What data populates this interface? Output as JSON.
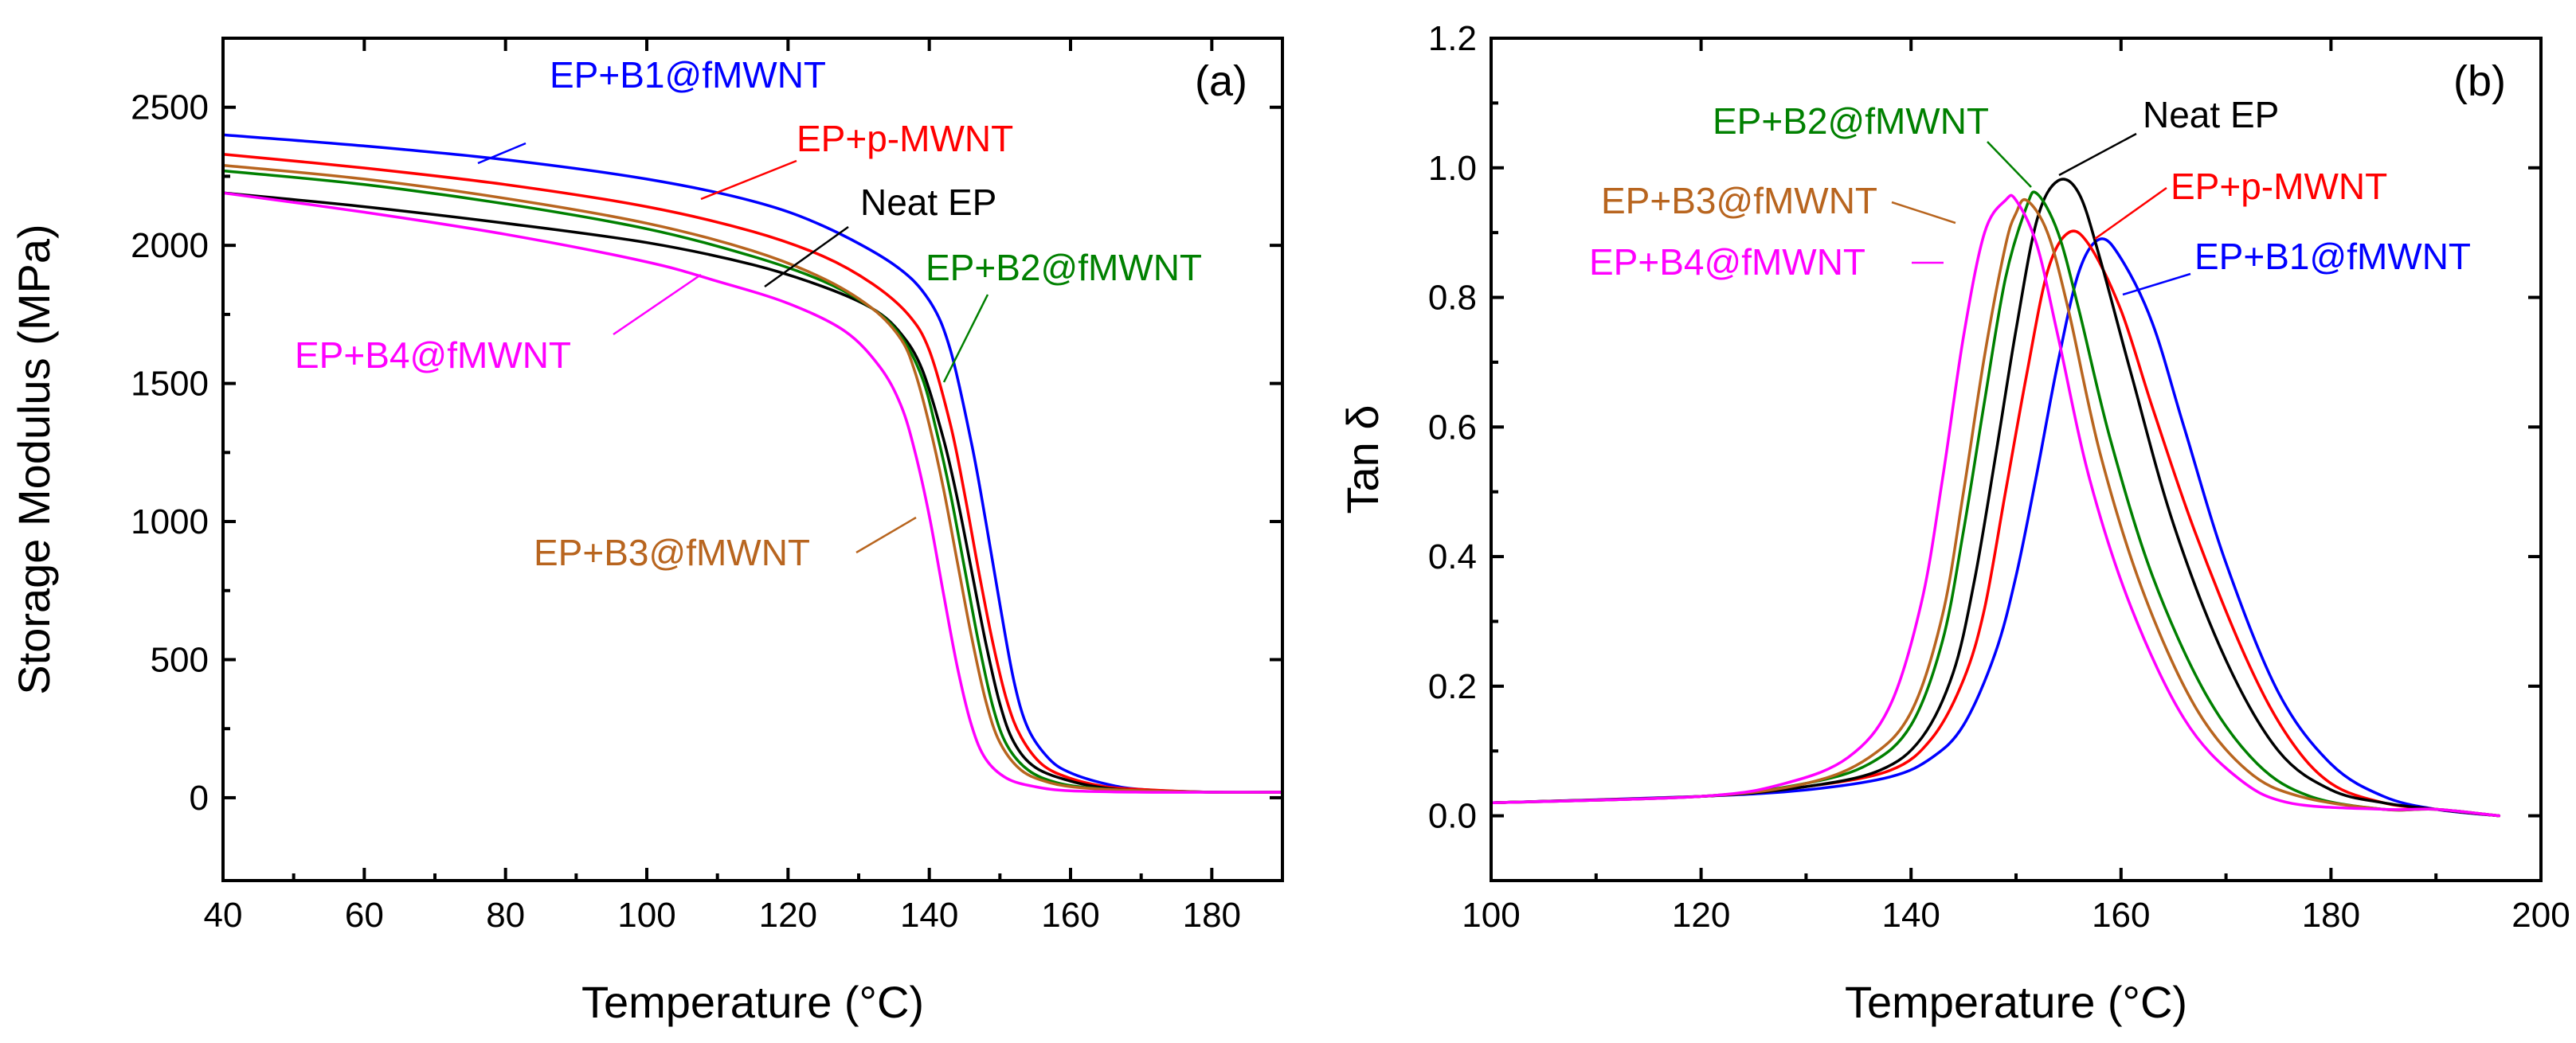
{
  "chart_data": [
    {
      "panel": "(a)",
      "type": "line",
      "title": "",
      "xlabel": "Temperature (°C)",
      "ylabel": "Storage Modulus (MPa)",
      "xlim": [
        40,
        190
      ],
      "ylim": [
        -300,
        2750
      ],
      "xticks": [
        40,
        60,
        80,
        100,
        120,
        140,
        160,
        180
      ],
      "yticks": [
        0,
        500,
        1000,
        1500,
        2000,
        2500
      ],
      "series": [
        {
          "name": "EP+B1@fMWNT",
          "color": "#0000ff",
          "x": [
            40,
            60,
            80,
            100,
            115,
            125,
            135,
            140,
            143,
            146,
            148,
            150,
            152,
            154,
            157,
            160,
            165,
            170,
            180,
            190
          ],
          "y": [
            2400,
            2360,
            2310,
            2240,
            2160,
            2070,
            1930,
            1800,
            1620,
            1280,
            1000,
            700,
            420,
            250,
            140,
            90,
            50,
            30,
            20,
            20
          ]
        },
        {
          "name": "EP+p-MWNT",
          "color": "#ff0000",
          "x": [
            40,
            60,
            80,
            100,
            115,
            125,
            132,
            137,
            140,
            143,
            145,
            147,
            149,
            151,
            153,
            156,
            160,
            165,
            170,
            180,
            190
          ],
          "y": [
            2330,
            2280,
            2220,
            2140,
            2050,
            1960,
            1860,
            1750,
            1620,
            1350,
            1100,
            820,
            560,
            350,
            220,
            120,
            70,
            40,
            30,
            20,
            20
          ]
        },
        {
          "name": "Neat EP",
          "color": "#000000",
          "x": [
            40,
            60,
            80,
            100,
            115,
            125,
            132,
            136,
            139,
            142,
            144,
            146,
            148,
            150,
            152,
            155,
            160,
            165,
            170,
            180,
            190
          ],
          "y": [
            2190,
            2140,
            2080,
            2010,
            1930,
            1850,
            1770,
            1680,
            1550,
            1300,
            1080,
            820,
            560,
            340,
            200,
            110,
            60,
            35,
            25,
            20,
            20
          ]
        },
        {
          "name": "EP+B2@fMWNT",
          "color": "#008000",
          "x": [
            40,
            60,
            80,
            100,
            115,
            125,
            132,
            136,
            139,
            141,
            143,
            145,
            147,
            149,
            151,
            154,
            158,
            163,
            170,
            180,
            190
          ],
          "y": [
            2270,
            2220,
            2150,
            2060,
            1960,
            1870,
            1770,
            1670,
            1520,
            1330,
            1100,
            830,
            560,
            330,
            190,
            100,
            55,
            35,
            25,
            20,
            20
          ]
        },
        {
          "name": "EP+B3@fMWNT",
          "color": "#b8651f",
          "x": [
            40,
            60,
            80,
            100,
            115,
            125,
            132,
            136,
            138,
            140,
            142,
            144,
            146,
            148,
            150,
            153,
            157,
            162,
            170,
            180,
            190
          ],
          "y": [
            2290,
            2240,
            2170,
            2080,
            1980,
            1880,
            1770,
            1660,
            1540,
            1350,
            1120,
            850,
            580,
            350,
            200,
            100,
            55,
            35,
            25,
            20,
            20
          ]
        },
        {
          "name": "EP+B4@fMWNT",
          "color": "#ff00ff",
          "x": [
            40,
            60,
            80,
            100,
            110,
            120,
            128,
            133,
            136,
            138,
            140,
            142,
            144,
            146,
            148,
            151,
            155,
            160,
            170,
            180,
            190
          ],
          "y": [
            2190,
            2120,
            2040,
            1940,
            1870,
            1790,
            1690,
            1560,
            1420,
            1250,
            1020,
            740,
            470,
            260,
            140,
            70,
            40,
            25,
            20,
            20,
            20
          ]
        }
      ],
      "labels": [
        {
          "text": "EP+B1@fMWNT",
          "series": "EP+B1@fMWNT"
        },
        {
          "text": "EP+p-MWNT",
          "series": "EP+p-MWNT"
        },
        {
          "text": "Neat EP",
          "series": "Neat EP"
        },
        {
          "text": "EP+B2@fMWNT",
          "series": "EP+B2@fMWNT"
        },
        {
          "text": "EP+B4@fMWNT",
          "series": "EP+B4@fMWNT"
        },
        {
          "text": "EP+B3@fMWNT",
          "series": "EP+B3@fMWNT"
        }
      ]
    },
    {
      "panel": "(b)",
      "type": "line",
      "title": "",
      "xlabel": "Temperature (°C)",
      "ylabel": "Tan δ",
      "xlim": [
        100,
        200
      ],
      "ylim": [
        -0.1,
        1.2
      ],
      "xticks": [
        100,
        120,
        140,
        160,
        180,
        200
      ],
      "yticks": [
        0.0,
        0.2,
        0.4,
        0.6,
        0.8,
        1.0,
        1.2
      ],
      "ytick_labels": [
        "0.0",
        "0.2",
        "0.4",
        "0.6",
        "0.8",
        "1.0",
        "1.2"
      ],
      "series": [
        {
          "name": "EP+B1@fMWNT",
          "color": "#0000ff",
          "x": [
            100,
            120,
            130,
            138,
            142,
            145,
            148,
            150,
            152,
            154,
            156,
            158,
            160,
            163,
            166,
            170,
            175,
            180,
            185,
            190,
            196
          ],
          "y": [
            0.02,
            0.03,
            0.04,
            0.06,
            0.09,
            0.14,
            0.25,
            0.37,
            0.53,
            0.7,
            0.84,
            0.89,
            0.86,
            0.76,
            0.6,
            0.39,
            0.19,
            0.08,
            0.03,
            0.01,
            0.0
          ]
        },
        {
          "name": "EP+p-MWNT",
          "color": "#ff0000",
          "x": [
            100,
            120,
            130,
            138,
            142,
            145,
            147,
            149,
            151,
            153,
            155,
            157,
            160,
            163,
            167,
            172,
            176,
            180,
            185,
            190,
            196
          ],
          "y": [
            0.02,
            0.03,
            0.045,
            0.07,
            0.12,
            0.21,
            0.32,
            0.5,
            0.68,
            0.84,
            0.9,
            0.88,
            0.78,
            0.63,
            0.44,
            0.24,
            0.12,
            0.05,
            0.02,
            0.01,
            0.0
          ]
        },
        {
          "name": "Neat EP",
          "color": "#000000",
          "x": [
            100,
            120,
            130,
            137,
            141,
            144,
            146,
            148,
            150,
            152,
            154,
            156,
            158,
            161,
            165,
            170,
            175,
            180,
            185,
            190,
            196
          ],
          "y": [
            0.02,
            0.03,
            0.045,
            0.07,
            0.12,
            0.22,
            0.36,
            0.55,
            0.75,
            0.92,
            0.98,
            0.96,
            0.86,
            0.68,
            0.45,
            0.24,
            0.1,
            0.04,
            0.02,
            0.01,
            0.0
          ]
        },
        {
          "name": "EP+B2@fMWNT",
          "color": "#008000",
          "x": [
            100,
            120,
            130,
            136,
            140,
            143,
            145,
            147,
            149,
            151,
            152,
            154,
            156,
            159,
            163,
            168,
            173,
            178,
            185,
            190,
            196
          ],
          "y": [
            0.02,
            0.03,
            0.05,
            0.08,
            0.14,
            0.27,
            0.44,
            0.64,
            0.83,
            0.94,
            0.96,
            0.9,
            0.78,
            0.58,
            0.37,
            0.19,
            0.08,
            0.03,
            0.01,
            0.01,
            0.0
          ]
        },
        {
          "name": "EP+B3@fMWNT",
          "color": "#b8651f",
          "x": [
            100,
            120,
            130,
            136,
            140,
            143,
            145,
            147,
            149,
            150,
            151,
            153,
            155,
            158,
            162,
            167,
            172,
            177,
            185,
            190,
            196
          ],
          "y": [
            0.02,
            0.03,
            0.05,
            0.09,
            0.16,
            0.31,
            0.5,
            0.71,
            0.88,
            0.93,
            0.95,
            0.9,
            0.78,
            0.56,
            0.35,
            0.17,
            0.07,
            0.03,
            0.01,
            0.01,
            0.0
          ]
        },
        {
          "name": "EP+B4@fMWNT",
          "color": "#ff00ff",
          "x": [
            100,
            120,
            128,
            134,
            138,
            141,
            143,
            145,
            147,
            149,
            150,
            152,
            154,
            157,
            161,
            166,
            171,
            176,
            185,
            190,
            196
          ],
          "y": [
            0.02,
            0.03,
            0.05,
            0.09,
            0.17,
            0.33,
            0.52,
            0.74,
            0.9,
            0.95,
            0.95,
            0.88,
            0.74,
            0.52,
            0.32,
            0.15,
            0.06,
            0.02,
            0.01,
            0.01,
            0.0
          ]
        }
      ],
      "labels": [
        {
          "text": "EP+B2@fMWNT",
          "series": "EP+B2@fMWNT"
        },
        {
          "text": "Neat EP",
          "series": "Neat EP"
        },
        {
          "text": "EP+p-MWNT",
          "series": "EP+p-MWNT"
        },
        {
          "text": "EP+B3@fMWNT",
          "series": "EP+B3@fMWNT"
        },
        {
          "text": "EP+B4@fMWNT",
          "series": "EP+B4@fMWNT"
        },
        {
          "text": "EP+B1@fMWNT",
          "series": "EP+B1@fMWNT"
        }
      ]
    }
  ]
}
